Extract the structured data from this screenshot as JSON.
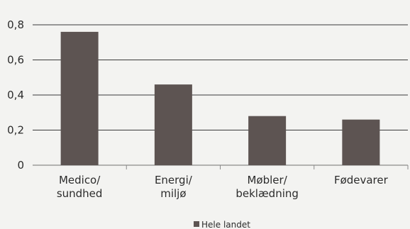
{
  "chart_data": {
    "type": "bar",
    "title": "",
    "xlabel": "",
    "ylabel": "",
    "categories": [
      [
        "Medico/",
        "sundhed"
      ],
      [
        "Energi/",
        "miljø"
      ],
      [
        "Møbler/",
        "beklædning"
      ],
      [
        "Fødevarer"
      ]
    ],
    "series": [
      {
        "name": "Hele landet",
        "values": [
          0.76,
          0.46,
          0.28,
          0.26
        ],
        "color": "#5d5452"
      }
    ],
    "ylim": [
      0,
      0.8
    ],
    "yticks": [
      0,
      0.2,
      0.4,
      0.6,
      0.8
    ],
    "ytick_labels": [
      "0",
      "0,2",
      "0,4",
      "0,6",
      "0,8"
    ],
    "grid": true,
    "legend_position": "bottom-center"
  }
}
